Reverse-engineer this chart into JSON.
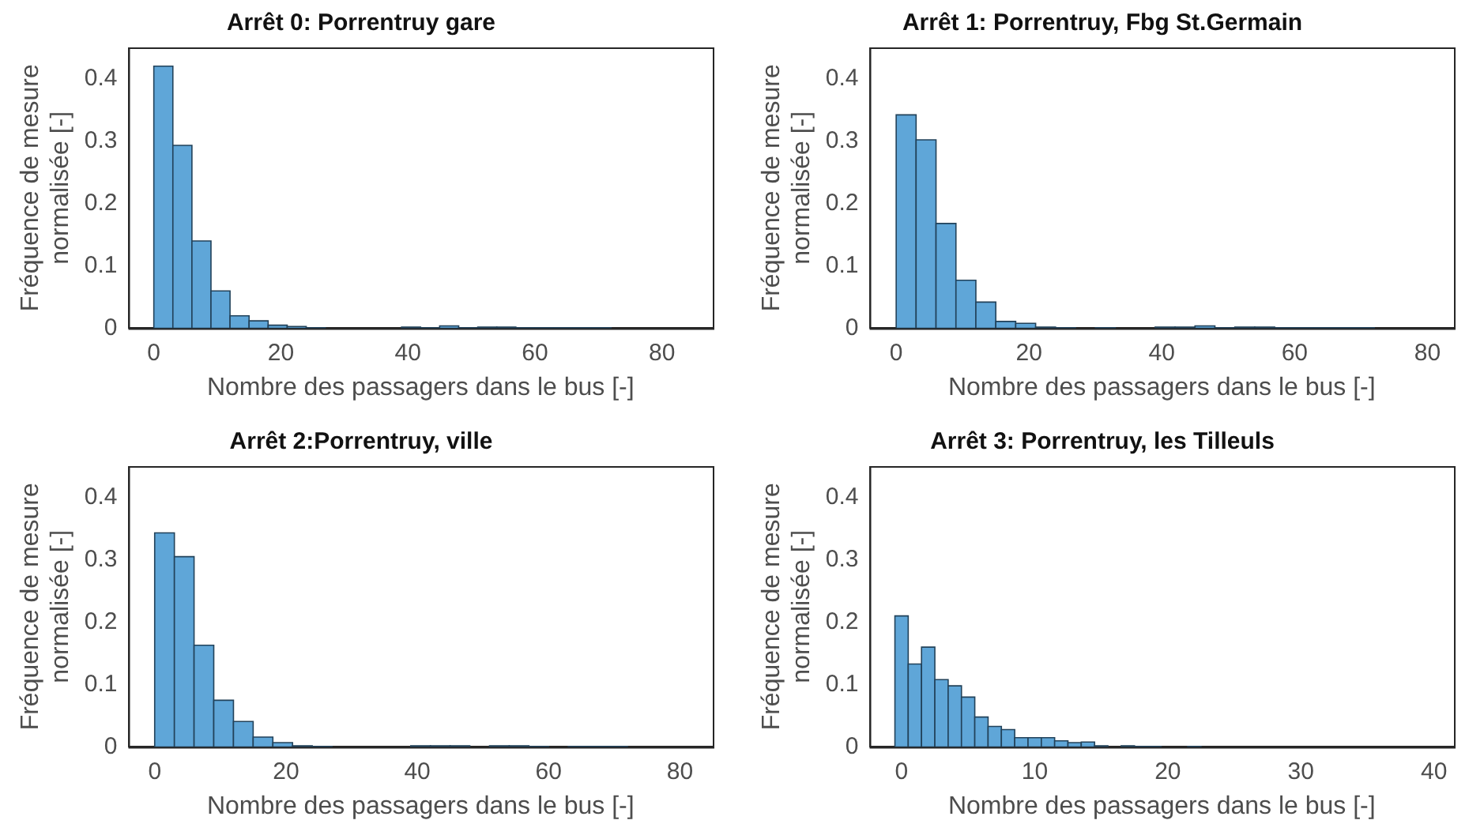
{
  "chart_data": [
    {
      "type": "histogram",
      "title": "Arrêt 0: Porrentruy gare",
      "xlabel": "Nombre des passagers dans le bus [-]",
      "ylabel": "Fréquence de mesure normalisée [-]",
      "color": "#5fa6d8",
      "grid": false,
      "legend": false,
      "bins": [
        0,
        3,
        6,
        9,
        12,
        15,
        18,
        21,
        24,
        27,
        30,
        33,
        36,
        39,
        42,
        45,
        48,
        51,
        54,
        57,
        60,
        63,
        66,
        69,
        72
      ],
      "values": [
        0.42,
        0.293,
        0.14,
        0.06,
        0.02,
        0.012,
        0.005,
        0.003,
        0.001,
        0,
        0,
        0,
        0,
        0.002,
        0.001,
        0.004,
        0.001,
        0.002,
        0.002,
        0.001,
        0.001,
        0.001,
        0.001,
        0.001
      ],
      "xlim": [
        -4,
        88
      ],
      "xticks": [
        0,
        20,
        40,
        60,
        80
      ],
      "ylim": [
        0,
        0.45
      ],
      "yticks": [
        0,
        0.1,
        0.2,
        0.3,
        0.4
      ]
    },
    {
      "type": "histogram",
      "title": "Arrêt 1: Porrentruy, Fbg St.Germain",
      "xlabel": "Nombre des passagers dans le bus [-]",
      "ylabel": "Fréquence de mesure normalisée [-]",
      "color": "#5fa6d8",
      "grid": false,
      "legend": false,
      "bins": [
        0,
        3,
        6,
        9,
        12,
        15,
        18,
        21,
        24,
        27,
        30,
        33,
        36,
        39,
        42,
        45,
        48,
        51,
        54,
        57,
        60,
        63,
        66,
        69,
        72
      ],
      "values": [
        0.342,
        0.302,
        0.168,
        0.077,
        0.042,
        0.011,
        0.008,
        0.002,
        0.001,
        0,
        0.001,
        0,
        0,
        0.002,
        0.002,
        0.004,
        0.001,
        0.002,
        0.002,
        0.001,
        0.001,
        0.001,
        0.001,
        0.001
      ],
      "xlim": [
        -4,
        84
      ],
      "xticks": [
        0,
        20,
        40,
        60,
        80
      ],
      "ylim": [
        0,
        0.45
      ],
      "yticks": [
        0,
        0.1,
        0.2,
        0.3,
        0.4
      ]
    },
    {
      "type": "histogram",
      "title": "Arrêt 2:Porrentruy, ville",
      "xlabel": "Nombre des passagers dans le bus [-]",
      "ylabel": "Fréquence de mesure normalisée [-]",
      "color": "#5fa6d8",
      "grid": false,
      "legend": false,
      "bins": [
        0,
        3,
        6,
        9,
        12,
        15,
        18,
        21,
        24,
        27,
        30,
        33,
        36,
        39,
        42,
        45,
        48,
        51,
        54,
        57,
        60,
        63,
        66,
        69,
        72
      ],
      "values": [
        0.343,
        0.305,
        0.163,
        0.075,
        0.041,
        0.016,
        0.007,
        0.002,
        0.001,
        0,
        0,
        0,
        0,
        0.002,
        0.002,
        0.002,
        0,
        0.002,
        0.002,
        0.001,
        0,
        0.001,
        0.001,
        0.001
      ],
      "xlim": [
        -4,
        85
      ],
      "xticks": [
        0,
        20,
        40,
        60,
        80
      ],
      "ylim": [
        0,
        0.45
      ],
      "yticks": [
        0,
        0.1,
        0.2,
        0.3,
        0.4
      ]
    },
    {
      "type": "histogram",
      "title": "Arrêt 3: Porrentruy, les Tilleuls",
      "xlabel": "Nombre des passagers dans le bus [-]",
      "ylabel": "Fréquence de mesure normalisée [-]",
      "color": "#5fa6d8",
      "grid": false,
      "legend": false,
      "bins": [
        -0.5,
        0.5,
        1.5,
        2.5,
        3.5,
        4.5,
        5.5,
        6.5,
        7.5,
        8.5,
        9.5,
        10.5,
        11.5,
        12.5,
        13.5,
        14.5,
        15.5,
        16.5,
        17.5,
        18.5,
        19.5,
        20.5,
        21.5,
        22.5
      ],
      "values": [
        0.21,
        0.133,
        0.16,
        0.108,
        0.098,
        0.08,
        0.048,
        0.033,
        0.028,
        0.015,
        0.015,
        0.015,
        0.01,
        0.007,
        0.008,
        0.002,
        0,
        0.002,
        0.001,
        0.001,
        0,
        0,
        0.001
      ],
      "xlim": [
        -2.4,
        41.5
      ],
      "xticks": [
        0,
        10,
        20,
        30,
        40
      ],
      "ylim": [
        0,
        0.45
      ],
      "yticks": [
        0,
        0.1,
        0.2,
        0.3,
        0.4
      ]
    }
  ]
}
